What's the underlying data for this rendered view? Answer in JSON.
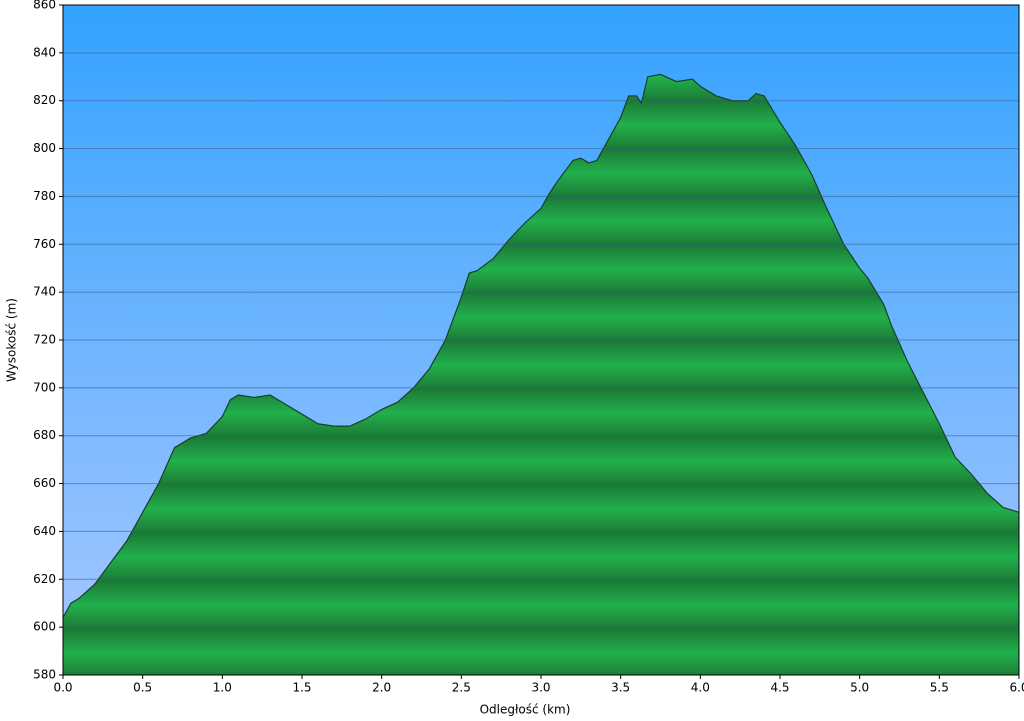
{
  "chart_data": {
    "type": "area",
    "x_label": "Odległość   (km)",
    "y_label": "Wysokość (m)",
    "x": [
      0.0,
      0.05,
      0.1,
      0.2,
      0.3,
      0.4,
      0.5,
      0.6,
      0.7,
      0.8,
      0.9,
      1.0,
      1.05,
      1.1,
      1.2,
      1.3,
      1.4,
      1.5,
      1.6,
      1.7,
      1.8,
      1.9,
      2.0,
      2.1,
      2.2,
      2.3,
      2.4,
      2.5,
      2.55,
      2.6,
      2.7,
      2.8,
      2.9,
      3.0,
      3.05,
      3.1,
      3.2,
      3.25,
      3.3,
      3.35,
      3.4,
      3.5,
      3.55,
      3.6,
      3.63,
      3.67,
      3.75,
      3.85,
      3.95,
      4.0,
      4.1,
      4.2,
      4.3,
      4.35,
      4.4,
      4.5,
      4.6,
      4.7,
      4.8,
      4.9,
      5.0,
      5.05,
      5.15,
      5.2,
      5.3,
      5.4,
      5.5,
      5.6,
      5.7,
      5.8,
      5.9,
      6.0
    ],
    "values": [
      604,
      610,
      612,
      618,
      627,
      636,
      648,
      660,
      675,
      679,
      681,
      688,
      695,
      697,
      696,
      697,
      693,
      689,
      685,
      684,
      684,
      687,
      691,
      694,
      700,
      708,
      720,
      738,
      748,
      749,
      754,
      762,
      769,
      775,
      781,
      786,
      795,
      796,
      794,
      795,
      801,
      813,
      822,
      822,
      819,
      830,
      831,
      828,
      829,
      826,
      822,
      820,
      820,
      823,
      822,
      811,
      801,
      789,
      774,
      760,
      750,
      746,
      735,
      726,
      711,
      698,
      685,
      671,
      664,
      656,
      650,
      648
    ],
    "color": "#1fa84a",
    "xlim": [
      0,
      6
    ],
    "ylim": [
      580,
      860
    ],
    "xticks": [
      {
        "value": 0,
        "label": "0.0"
      },
      {
        "value": 0.5,
        "label": "0.5"
      },
      {
        "value": 1,
        "label": "1.0"
      },
      {
        "value": 1.5,
        "label": "1.5"
      },
      {
        "value": 2,
        "label": "2.0"
      },
      {
        "value": 2.5,
        "label": "2.5"
      },
      {
        "value": 3,
        "label": "3.0"
      },
      {
        "value": 3.5,
        "label": "3.5"
      },
      {
        "value": 4,
        "label": "4.0"
      },
      {
        "value": 4.5,
        "label": "4.5"
      },
      {
        "value": 5,
        "label": "5.0"
      },
      {
        "value": 5.5,
        "label": "5.5"
      },
      {
        "value": 6,
        "label": "6.0"
      }
    ],
    "yticks": [
      580,
      600,
      620,
      640,
      660,
      680,
      700,
      720,
      740,
      760,
      780,
      800,
      820,
      840,
      860
    ],
    "grid": true
  }
}
